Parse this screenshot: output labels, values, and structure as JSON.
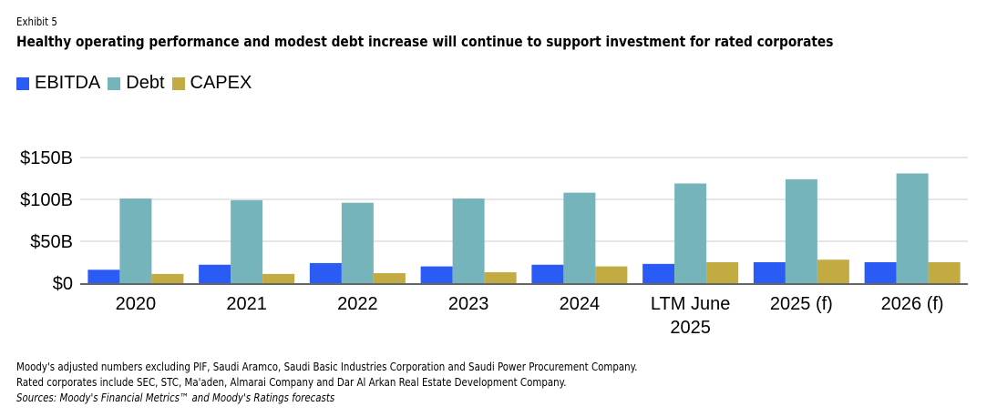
{
  "header": {
    "exhibit": "Exhibit 5",
    "title": "Healthy operating performance and modest debt increase will continue to support investment for rated corporates"
  },
  "footer": {
    "note1": "Moody's adjusted numbers excluding PIF, Saudi Aramco, Saudi Basic Industries Corporation and Saudi Power Procurement Company.",
    "note2": "Rated corporates include SEC, STC, Ma'aden, Almarai Company and Dar Al Arkan Real Estate Development Company.",
    "source": "Sources: Moody's Financial Metrics™ and Moody's Ratings forecasts"
  },
  "chart_data": {
    "type": "bar",
    "title": "Healthy operating performance and modest debt increase will continue to support investment for rated corporates",
    "xlabel": "",
    "ylabel": "",
    "categories": [
      "2020",
      "2021",
      "2022",
      "2023",
      "2024",
      "LTM June 2025",
      "2025 (f)",
      "2026 (f)"
    ],
    "series": [
      {
        "name": "EBITDA",
        "color": "#2a5cf5",
        "values": [
          16,
          22,
          24,
          20,
          22,
          23,
          25,
          25
        ]
      },
      {
        "name": "Debt",
        "color": "#74b4ba",
        "values": [
          101,
          99,
          96,
          101,
          108,
          119,
          124,
          131
        ]
      },
      {
        "name": "CAPEX",
        "color": "#c2ab40",
        "values": [
          11,
          11,
          12,
          13,
          20,
          25,
          28,
          25
        ]
      }
    ],
    "yticks": [
      0,
      50,
      100,
      150
    ],
    "ytick_labels": [
      "$0",
      "$50B",
      "$100B",
      "$150B"
    ],
    "ylim": [
      0,
      150
    ],
    "unit": "USD billions",
    "grid": true,
    "legend_position": "top-left"
  }
}
